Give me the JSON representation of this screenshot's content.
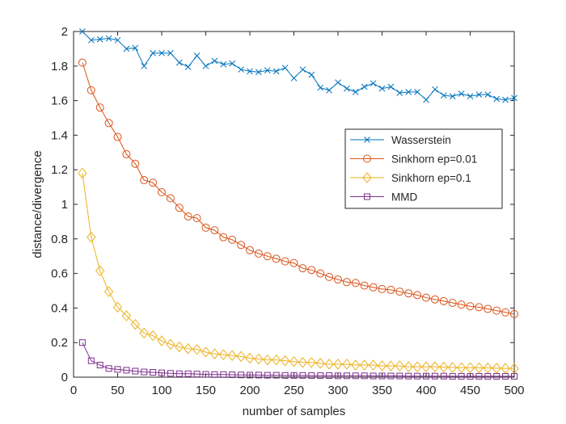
{
  "chart_data": {
    "type": "line",
    "title": "",
    "xlabel": "number of samples",
    "ylabel": "distance/divergence",
    "xlim": [
      0,
      500
    ],
    "ylim": [
      0,
      2
    ],
    "xticks": [
      0,
      50,
      100,
      150,
      200,
      250,
      300,
      350,
      400,
      450,
      500
    ],
    "yticks": [
      0,
      0.2,
      0.4,
      0.6,
      0.8,
      1,
      1.2,
      1.4,
      1.6,
      1.8,
      2
    ],
    "xtick_labels": [
      "0",
      "50",
      "100",
      "150",
      "200",
      "250",
      "300",
      "350",
      "400",
      "450",
      "500"
    ],
    "ytick_labels": [
      "0",
      "0.2",
      "0.4",
      "0.6",
      "0.8",
      "1",
      "1.2",
      "1.4",
      "1.6",
      "1.8",
      "2"
    ],
    "grid": false,
    "legend_position": "right",
    "x": [
      10,
      20,
      30,
      40,
      50,
      60,
      70,
      80,
      90,
      100,
      110,
      120,
      130,
      140,
      150,
      160,
      170,
      180,
      190,
      200,
      210,
      220,
      230,
      240,
      250,
      260,
      270,
      280,
      290,
      300,
      310,
      320,
      330,
      340,
      350,
      360,
      370,
      380,
      390,
      400,
      410,
      420,
      430,
      440,
      450,
      460,
      470,
      480,
      490,
      500
    ],
    "series": [
      {
        "name": "Wasserstein",
        "color": "#0072BD",
        "marker": "x",
        "values": [
          2.0,
          1.95,
          1.955,
          1.96,
          1.95,
          1.9,
          1.905,
          1.8,
          1.875,
          1.875,
          1.875,
          1.82,
          1.795,
          1.86,
          1.8,
          1.83,
          1.81,
          1.815,
          1.78,
          1.77,
          1.765,
          1.775,
          1.77,
          1.79,
          1.73,
          1.78,
          1.75,
          1.675,
          1.66,
          1.705,
          1.67,
          1.65,
          1.68,
          1.7,
          1.67,
          1.68,
          1.645,
          1.65,
          1.65,
          1.605,
          1.665,
          1.63,
          1.625,
          1.64,
          1.625,
          1.635,
          1.635,
          1.61,
          1.605,
          1.615
        ]
      },
      {
        "name": "Sinkhorn ep=0.01",
        "color": "#D95319",
        "marker": "o",
        "values": [
          1.82,
          1.66,
          1.56,
          1.47,
          1.39,
          1.29,
          1.235,
          1.14,
          1.125,
          1.07,
          1.035,
          0.98,
          0.93,
          0.92,
          0.865,
          0.85,
          0.81,
          0.795,
          0.765,
          0.735,
          0.715,
          0.7,
          0.685,
          0.67,
          0.66,
          0.63,
          0.62,
          0.6,
          0.58,
          0.565,
          0.55,
          0.545,
          0.53,
          0.52,
          0.51,
          0.505,
          0.495,
          0.485,
          0.475,
          0.46,
          0.45,
          0.44,
          0.43,
          0.42,
          0.41,
          0.405,
          0.395,
          0.385,
          0.375,
          0.365
        ]
      },
      {
        "name": "Sinkhorn ep=0.1",
        "color": "#EDB120",
        "marker": "diamond",
        "values": [
          1.18,
          0.81,
          0.615,
          0.495,
          0.405,
          0.355,
          0.305,
          0.255,
          0.24,
          0.21,
          0.19,
          0.175,
          0.165,
          0.16,
          0.145,
          0.135,
          0.13,
          0.125,
          0.12,
          0.11,
          0.105,
          0.1,
          0.1,
          0.095,
          0.09,
          0.085,
          0.085,
          0.08,
          0.075,
          0.075,
          0.075,
          0.07,
          0.07,
          0.07,
          0.065,
          0.065,
          0.065,
          0.06,
          0.06,
          0.06,
          0.06,
          0.058,
          0.056,
          0.055,
          0.055,
          0.054,
          0.053,
          0.052,
          0.051,
          0.05
        ]
      },
      {
        "name": "MMD",
        "color": "#7E2F8E",
        "marker": "square",
        "values": [
          0.2,
          0.095,
          0.07,
          0.05,
          0.045,
          0.04,
          0.035,
          0.03,
          0.028,
          0.025,
          0.022,
          0.02,
          0.02,
          0.018,
          0.016,
          0.015,
          0.015,
          0.014,
          0.013,
          0.012,
          0.012,
          0.011,
          0.011,
          0.01,
          0.01,
          0.01,
          0.009,
          0.009,
          0.009,
          0.008,
          0.008,
          0.008,
          0.008,
          0.007,
          0.007,
          0.007,
          0.007,
          0.006,
          0.006,
          0.006,
          0.006,
          0.006,
          0.005,
          0.005,
          0.005,
          0.005,
          0.005,
          0.005,
          0.005,
          0.005
        ]
      }
    ]
  }
}
